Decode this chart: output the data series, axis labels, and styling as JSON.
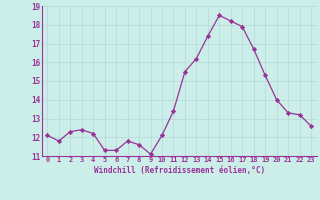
{
  "x": [
    0,
    1,
    2,
    3,
    4,
    5,
    6,
    7,
    8,
    9,
    10,
    11,
    12,
    13,
    14,
    15,
    16,
    17,
    18,
    19,
    20,
    21,
    22,
    23
  ],
  "y": [
    12.1,
    11.8,
    12.3,
    12.4,
    12.2,
    11.3,
    11.3,
    11.8,
    11.6,
    11.1,
    12.1,
    13.4,
    15.5,
    16.2,
    17.4,
    18.5,
    18.2,
    17.9,
    16.7,
    15.3,
    14.0,
    13.3,
    13.2,
    12.6
  ],
  "line_color": "#993399",
  "marker": "D",
  "markersize": 2.2,
  "bg_color": "#cceee8",
  "grid_color": "#bbdddd",
  "xlabel": "Windchill (Refroidissement éolien,°C)",
  "xlabel_color": "#993399",
  "tick_color": "#993399",
  "label_color": "#993399",
  "ylim": [
    11,
    19
  ],
  "xlim": [
    -0.5,
    23.5
  ],
  "yticks": [
    11,
    12,
    13,
    14,
    15,
    16,
    17,
    18,
    19
  ],
  "xticks": [
    0,
    1,
    2,
    3,
    4,
    5,
    6,
    7,
    8,
    9,
    10,
    11,
    12,
    13,
    14,
    15,
    16,
    17,
    18,
    19,
    20,
    21,
    22,
    23
  ],
  "xtick_labels": [
    "0",
    "1",
    "2",
    "3",
    "4",
    "5",
    "6",
    "7",
    "8",
    "9",
    "10",
    "11",
    "12",
    "13",
    "14",
    "15",
    "16",
    "17",
    "18",
    "19",
    "20",
    "21",
    "22",
    "23"
  ]
}
